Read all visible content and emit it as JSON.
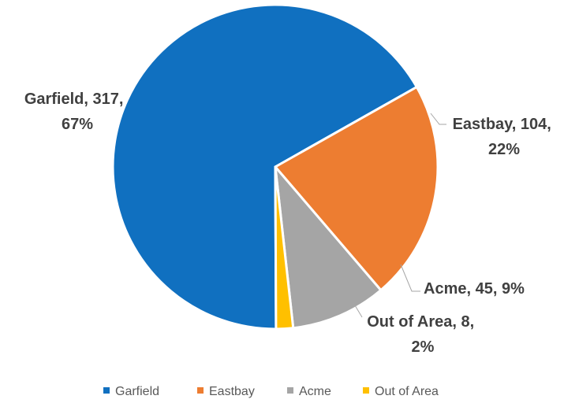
{
  "chart_data": {
    "type": "pie",
    "title": "",
    "legend_position": "bottom",
    "slices": [
      {
        "category": "Garfield",
        "value": 317,
        "percent": "67%",
        "color": "#1070C0"
      },
      {
        "category": "Eastbay",
        "value": 104,
        "percent": "22%",
        "color": "#ED7D31"
      },
      {
        "category": "Acme",
        "value": 45,
        "percent": "9%",
        "color": "#A5A5A5"
      },
      {
        "category": "Out of Area",
        "value": 8,
        "percent": "2%",
        "color": "#FFC000"
      }
    ],
    "data_labels": [
      {
        "line1": "Garfield, 317,",
        "line2": "67%"
      },
      {
        "line1": "Eastbay, 104,",
        "line2": "22%"
      },
      {
        "line1": "Acme, 45, 9%",
        "line2": ""
      },
      {
        "line1": "Out of Area, 8,",
        "line2": "2%"
      }
    ],
    "legend": [
      "Garfield",
      "Eastbay",
      "Acme",
      "Out of Area"
    ]
  }
}
